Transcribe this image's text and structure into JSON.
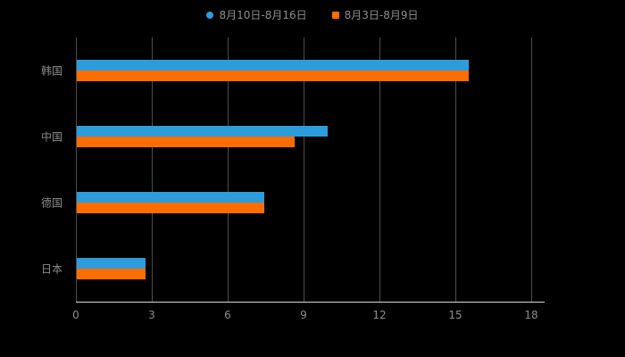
{
  "legend": {
    "items": [
      {
        "label": "8月10日-8月16日",
        "color": "#2D9CDB",
        "marker": "circle"
      },
      {
        "label": "8月3日-8月9日",
        "color": "#FF6D00",
        "marker": "square"
      }
    ]
  },
  "chart_data": {
    "type": "bar",
    "orientation": "horizontal",
    "title": "",
    "xlabel": "",
    "ylabel": "",
    "categories": [
      "韩国",
      "中国",
      "德国",
      "日本"
    ],
    "series": [
      {
        "name": "8月10日-8月16日",
        "color": "#2D9CDB",
        "values": [
          15.5,
          9.9,
          7.4,
          2.7
        ]
      },
      {
        "name": "8月3日-8月9日",
        "color": "#FF6D00",
        "values": [
          15.5,
          8.6,
          7.4,
          2.7
        ]
      }
    ],
    "xlim": [
      0,
      18
    ],
    "xticks": [
      0,
      3,
      6,
      9,
      12,
      15,
      18
    ],
    "grid": true,
    "legend_position": "top",
    "background_color": "#000000",
    "text_color": "#8c8c8c",
    "grid_color": "#4d4d4d",
    "axis_color": "#d9d9d9"
  }
}
